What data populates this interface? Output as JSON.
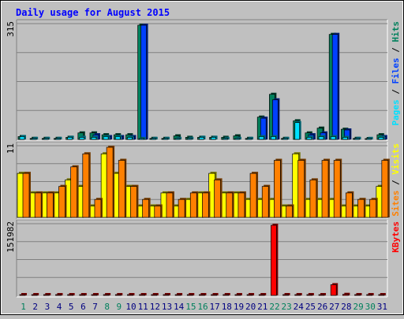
{
  "title": "Daily usage for August 2015",
  "colors": {
    "background": "#C0C0C0",
    "hits": "#00805c",
    "files": "#0040ff",
    "pages": "#00e0ff",
    "visits": "#ffff00",
    "sites": "#ff8000",
    "kbytes": "#ff0000",
    "weekend_day": "#00805c",
    "weekday": "#000080",
    "title": "#0000ff"
  },
  "chart_data": [
    {
      "type": "bar",
      "panel": "hits_files_pages",
      "ymax_label": "315",
      "ymax": 315,
      "legend": [
        {
          "text": "Pages",
          "key": "pages"
        },
        {
          "text": " / ",
          "key": "sep"
        },
        {
          "text": "Files",
          "key": "files"
        },
        {
          "text": " / ",
          "key": "sep"
        },
        {
          "text": "Hits",
          "key": "hits"
        }
      ],
      "categories": [
        "1",
        "2",
        "3",
        "4",
        "5",
        "6",
        "7",
        "8",
        "9",
        "10",
        "11",
        "12",
        "13",
        "14",
        "15",
        "16",
        "17",
        "18",
        "19",
        "20",
        "21",
        "22",
        "23",
        "24",
        "25",
        "26",
        "27",
        "28",
        "29",
        "30",
        "31"
      ],
      "series": [
        {
          "name": "Hits",
          "values": [
            12,
            7,
            7,
            7,
            10,
            22,
            22,
            17,
            17,
            17,
            315,
            7,
            7,
            14,
            10,
            10,
            10,
            10,
            14,
            7,
            65,
            127,
            7,
            55,
            22,
            35,
            290,
            32,
            7,
            5,
            17
          ]
        },
        {
          "name": "Files",
          "values": [
            0,
            0,
            0,
            0,
            0,
            0,
            17,
            12,
            12,
            12,
            315,
            0,
            0,
            0,
            0,
            0,
            0,
            0,
            0,
            0,
            62,
            112,
            0,
            0,
            17,
            22,
            290,
            30,
            0,
            0,
            12
          ]
        },
        {
          "name": "Pages",
          "values": [
            12,
            7,
            7,
            7,
            10,
            10,
            10,
            12,
            12,
            10,
            7,
            7,
            7,
            7,
            7,
            10,
            10,
            7,
            7,
            7,
            12,
            12,
            7,
            50,
            10,
            12,
            12,
            10,
            7,
            7,
            10
          ]
        }
      ]
    },
    {
      "type": "bar",
      "panel": "visits_sites",
      "ymax_label": "11",
      "ymax": 11,
      "legend": [
        {
          "text": "Sites",
          "key": "sites"
        },
        {
          "text": " / ",
          "key": "sep"
        },
        {
          "text": "Visits",
          "key": "visits"
        }
      ],
      "categories": [
        "1",
        "2",
        "3",
        "4",
        "5",
        "6",
        "7",
        "8",
        "9",
        "10",
        "11",
        "12",
        "13",
        "14",
        "15",
        "16",
        "17",
        "18",
        "19",
        "20",
        "21",
        "22",
        "23",
        "24",
        "25",
        "26",
        "27",
        "28",
        "29",
        "30",
        "31"
      ],
      "series": [
        {
          "name": "Visits",
          "values": [
            7,
            4,
            4,
            4,
            6,
            5,
            2,
            10,
            7,
            5,
            2,
            2,
            4,
            2,
            3,
            4,
            7,
            4,
            4,
            3,
            3,
            3,
            2,
            10,
            3,
            3,
            3,
            2,
            2,
            2,
            5
          ]
        },
        {
          "name": "Sites",
          "values": [
            7,
            4,
            4,
            5,
            8,
            10,
            3,
            11,
            9,
            5,
            3,
            2,
            4,
            3,
            4,
            4,
            6,
            4,
            4,
            7,
            5,
            9,
            2,
            9,
            6,
            9,
            9,
            4,
            3,
            3,
            9
          ]
        }
      ]
    },
    {
      "type": "bar",
      "panel": "kbytes",
      "ymax_label": "151982",
      "ymax": 151982,
      "legend": [
        {
          "text": "KBytes",
          "key": "kbytes"
        }
      ],
      "categories": [
        "1",
        "2",
        "3",
        "4",
        "5",
        "6",
        "7",
        "8",
        "9",
        "10",
        "11",
        "12",
        "13",
        "14",
        "15",
        "16",
        "17",
        "18",
        "19",
        "20",
        "21",
        "22",
        "23",
        "24",
        "25",
        "26",
        "27",
        "28",
        "29",
        "30",
        "31"
      ],
      "series": [
        {
          "name": "KBytes",
          "values": [
            1600,
            1600,
            1600,
            1600,
            1600,
            1600,
            1600,
            1600,
            1600,
            1600,
            4000,
            1600,
            1600,
            1600,
            1600,
            1600,
            1600,
            1600,
            1600,
            1600,
            1600,
            151982,
            1600,
            1600,
            1600,
            1600,
            26000,
            5500,
            1600,
            1600,
            3500
          ]
        }
      ]
    }
  ],
  "weekend_days": [
    1,
    8,
    9,
    15,
    16,
    22,
    23,
    29,
    30
  ]
}
